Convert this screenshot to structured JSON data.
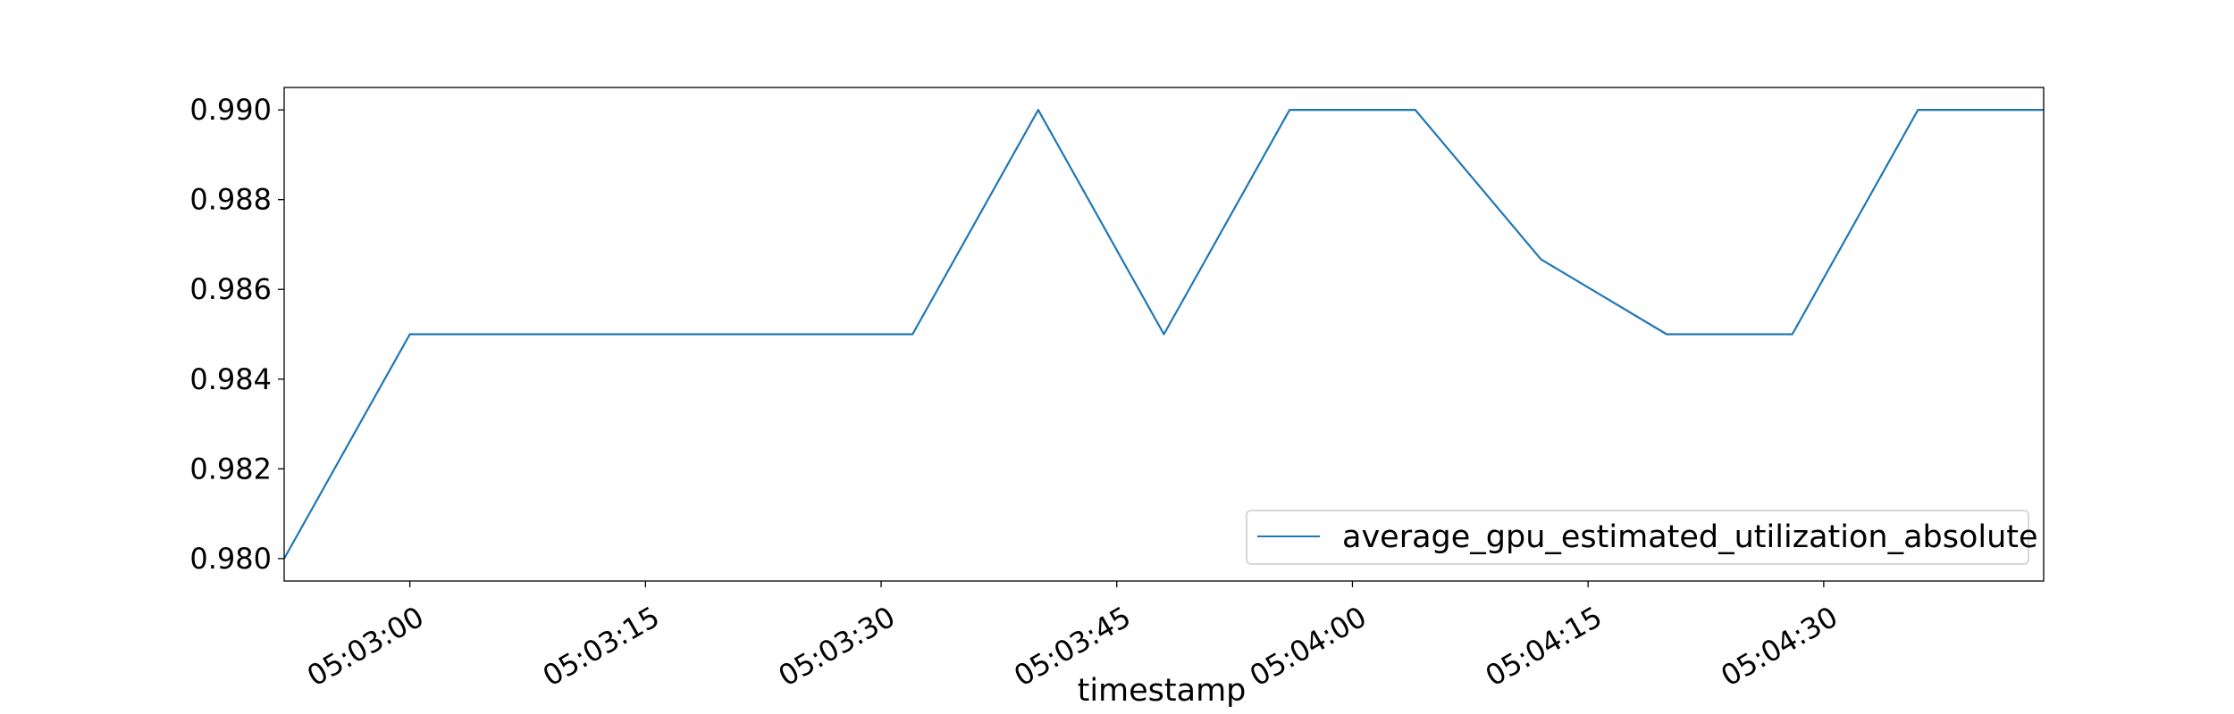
{
  "chart_data": {
    "type": "line",
    "title": "",
    "xlabel": "timestamp",
    "ylabel": "",
    "x_ticks": [
      "05:03:00",
      "05:03:15",
      "05:03:30",
      "05:03:45",
      "05:04:00",
      "05:04:15",
      "05:04:30"
    ],
    "x_tick_seconds": [
      0,
      15,
      30,
      45,
      60,
      75,
      90
    ],
    "xlim_seconds": [
      -8,
      104
    ],
    "y_ticks": [
      "0.980",
      "0.982",
      "0.984",
      "0.986",
      "0.988",
      "0.990"
    ],
    "y_tick_values": [
      0.98,
      0.982,
      0.984,
      0.986,
      0.988,
      0.99
    ],
    "ylim": [
      0.9795,
      0.9905
    ],
    "grid": false,
    "legend_position": "lower-right",
    "series": [
      {
        "name": "average_gpu_estimated_utilization_absolute",
        "color": "#1f77b4",
        "x_seconds": [
          -8,
          0,
          8,
          16,
          24,
          32,
          40,
          48,
          56,
          64,
          72,
          80,
          88,
          96,
          104
        ],
        "values": [
          0.98,
          0.985,
          0.985,
          0.985,
          0.985,
          0.985,
          0.99,
          0.985,
          0.99,
          0.99,
          0.98667,
          0.985,
          0.985,
          0.99,
          0.99
        ]
      }
    ]
  }
}
